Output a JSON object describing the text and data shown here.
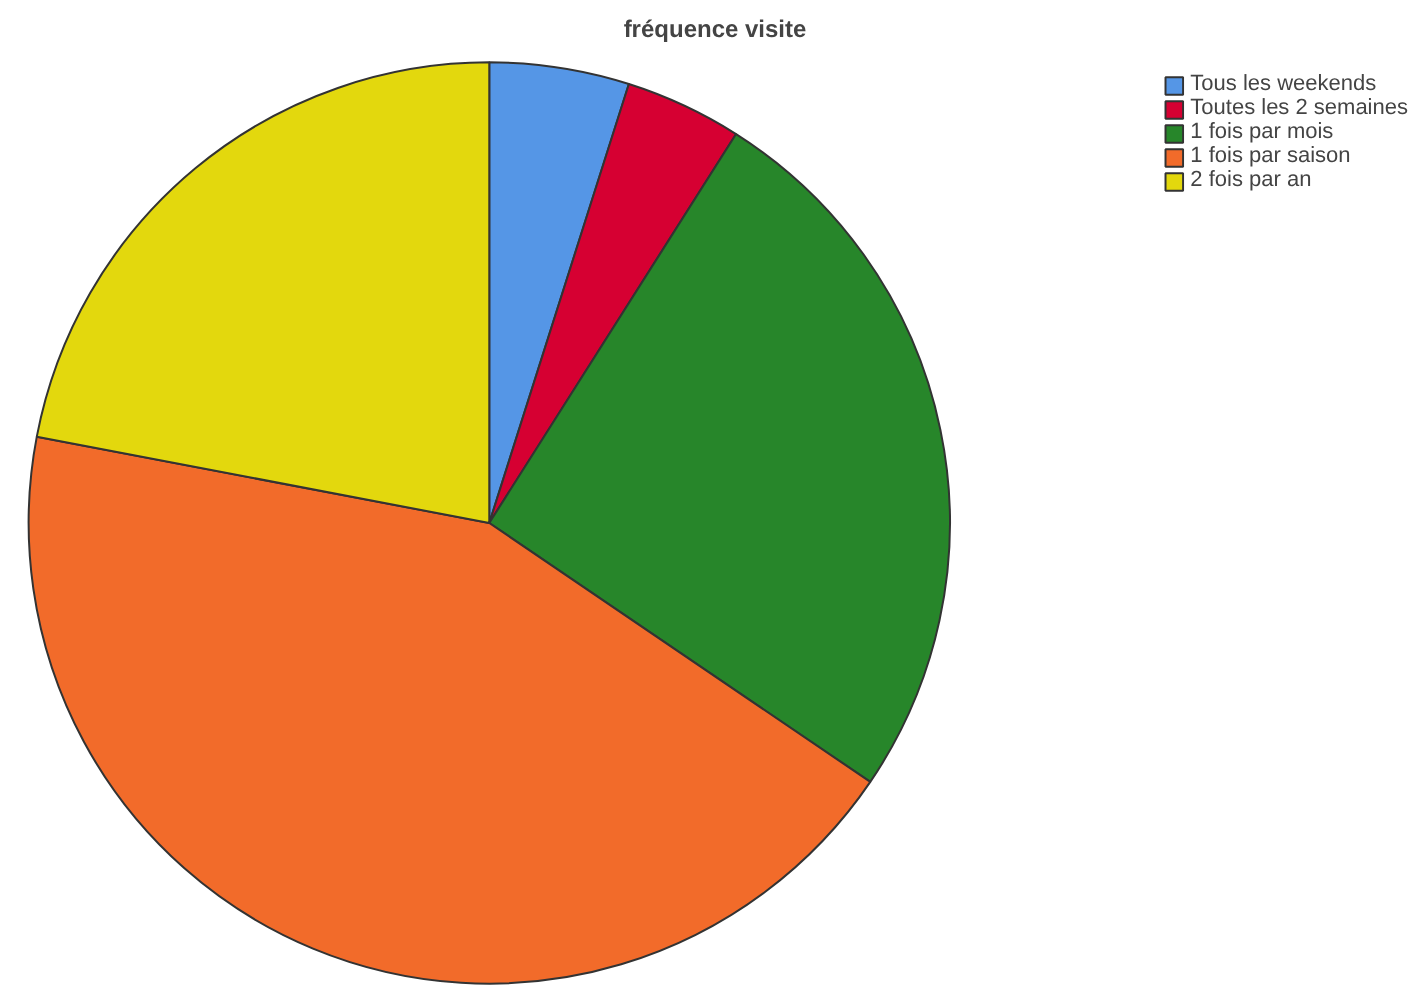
{
  "chart_data": {
    "type": "pie",
    "title": "fréquence visite",
    "categories": [
      "Tous les weekends",
      "Toutes les 2 semaines",
      "1 fois par mois",
      "1 fois par saison",
      "2 fois par an"
    ],
    "values": [
      4.9,
      4.1,
      25.5,
      43.5,
      22.0
    ],
    "colors": [
      "#5596e6",
      "#d60032",
      "#27862a",
      "#f26b2a",
      "#e3d80d"
    ],
    "legend": "top right"
  }
}
